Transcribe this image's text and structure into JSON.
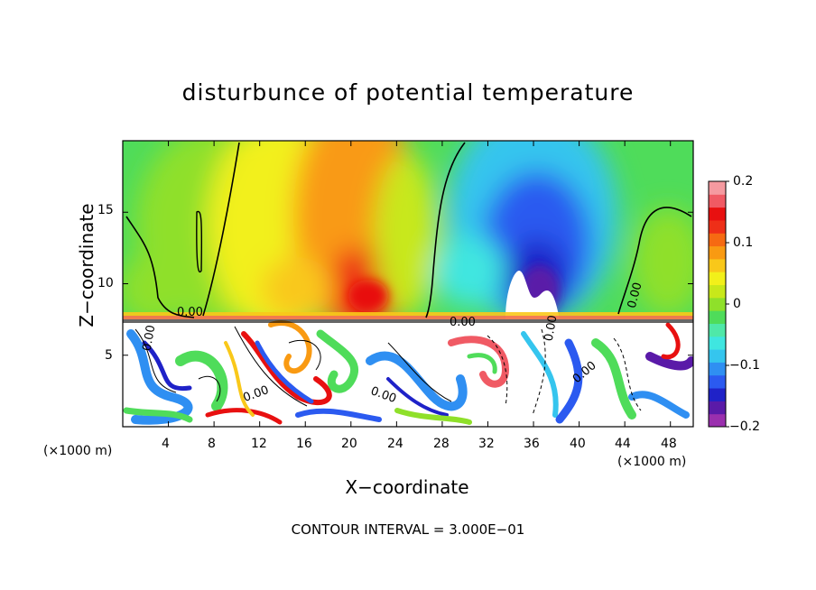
{
  "chart_data": {
    "type": "heatmap",
    "title": "disturbunce of potential temperature",
    "xlabel": "X−coordinate",
    "ylabel": "Z−coordinate",
    "x_unit": "(×1000 m)",
    "y_unit": "(×1000 m)",
    "footnote": "CONTOUR INTERVAL = 3.000E−01",
    "xlim": [
      0,
      50
    ],
    "ylim": [
      0,
      20
    ],
    "x_ticks": [
      "4",
      "8",
      "12",
      "16",
      "20",
      "24",
      "28",
      "32",
      "36",
      "40",
      "44",
      "48"
    ],
    "y_ticks": [
      "5",
      "10",
      "15"
    ],
    "colorbar": {
      "range": [
        -0.2,
        0.2
      ],
      "tick_labels": [
        "0.2",
        "0.1",
        "0",
        "−0.1",
        "−0.2"
      ],
      "colors": [
        "#9a2fae",
        "#5a1aa8",
        "#1f22c8",
        "#2b5af0",
        "#2f8ff2",
        "#35c5ee",
        "#3fe6e0",
        "#4fe8a8",
        "#4fdc5a",
        "#8fe02a",
        "#c8e81a",
        "#f2f01a",
        "#f9c81a",
        "#f99a12",
        "#f66a12",
        "#ee2f18",
        "#e81010",
        "#f05a64",
        "#f59aa0"
      ]
    },
    "contour_labels": [
      "0.00",
      "0.00",
      "0.00",
      "0.00",
      "0.00",
      "0.00",
      "0.00",
      "0.00"
    ],
    "grid": false,
    "legend": "right"
  }
}
